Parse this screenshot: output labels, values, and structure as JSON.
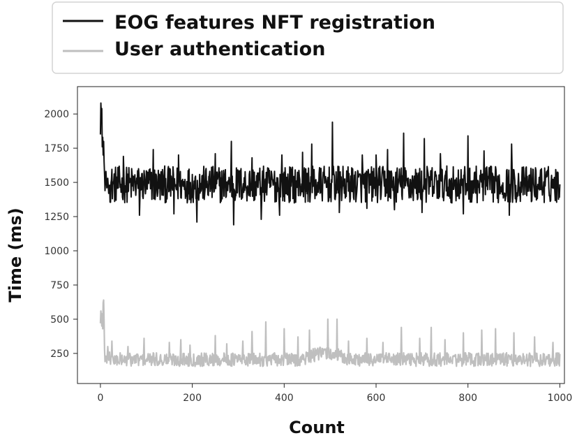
{
  "chart_data": {
    "type": "line",
    "xlabel": "Count",
    "ylabel": "Time (ms)",
    "xlim": [
      -50,
      1010
    ],
    "ylim": [
      30,
      2200
    ],
    "x_ticks": [
      0,
      200,
      400,
      600,
      800,
      1000
    ],
    "y_ticks": [
      250,
      500,
      750,
      1000,
      1250,
      1500,
      1750,
      2000
    ],
    "grid": false,
    "legend_position": "top",
    "series": [
      {
        "name": "EOG features NFT registration",
        "color": "#111111",
        "baseline": 1470,
        "noise_range": [
          1350,
          1620
        ],
        "x": [
          0,
          1,
          2,
          3,
          4,
          5,
          6,
          7,
          8,
          9,
          10,
          12,
          14,
          16,
          18,
          20
        ],
        "y": [
          1850,
          2080,
          1990,
          2040,
          1760,
          1830,
          1700,
          1800,
          1650,
          1560,
          1440,
          1580,
          1460,
          1530,
          1420,
          1480
        ],
        "spikes": [
          [
            50,
            1690
          ],
          [
            85,
            1700
          ],
          [
            115,
            1740
          ],
          [
            170,
            1700
          ],
          [
            210,
            1760
          ],
          [
            250,
            1710
          ],
          [
            285,
            1800
          ],
          [
            330,
            1680
          ],
          [
            395,
            1700
          ],
          [
            440,
            1720
          ],
          [
            460,
            1780
          ],
          [
            505,
            1940
          ],
          [
            570,
            1700
          ],
          [
            600,
            1700
          ],
          [
            625,
            1740
          ],
          [
            660,
            1860
          ],
          [
            705,
            1820
          ],
          [
            740,
            1710
          ],
          [
            800,
            1840
          ],
          [
            835,
            1730
          ],
          [
            895,
            1780
          ],
          [
            960,
            1600
          ],
          [
            85,
            1260
          ],
          [
            160,
            1270
          ],
          [
            210,
            1210
          ],
          [
            290,
            1190
          ],
          [
            350,
            1230
          ],
          [
            390,
            1260
          ],
          [
            520,
            1280
          ],
          [
            580,
            1310
          ],
          [
            640,
            1300
          ],
          [
            700,
            1280
          ],
          [
            790,
            1270
          ],
          [
            890,
            1260
          ]
        ]
      },
      {
        "name": "User authentication",
        "color": "#bfbfbf",
        "baseline": 205,
        "noise_range": [
          155,
          255
        ],
        "x": [
          0,
          1,
          2,
          3,
          4,
          5,
          6,
          7,
          8,
          9,
          10,
          12,
          14,
          16,
          18,
          20
        ],
        "y": [
          470,
          560,
          510,
          450,
          540,
          430,
          620,
          640,
          480,
          280,
          190,
          230,
          180,
          300,
          200,
          260
        ],
        "spikes": [
          [
            25,
            340
          ],
          [
            60,
            300
          ],
          [
            95,
            360
          ],
          [
            150,
            330
          ],
          [
            175,
            350
          ],
          [
            195,
            310
          ],
          [
            250,
            380
          ],
          [
            275,
            320
          ],
          [
            310,
            340
          ],
          [
            330,
            410
          ],
          [
            360,
            480
          ],
          [
            400,
            430
          ],
          [
            430,
            370
          ],
          [
            455,
            420
          ],
          [
            495,
            500
          ],
          [
            515,
            500
          ],
          [
            540,
            340
          ],
          [
            580,
            360
          ],
          [
            615,
            330
          ],
          [
            655,
            440
          ],
          [
            695,
            360
          ],
          [
            720,
            440
          ],
          [
            750,
            350
          ],
          [
            790,
            400
          ],
          [
            830,
            420
          ],
          [
            860,
            430
          ],
          [
            900,
            400
          ],
          [
            945,
            370
          ],
          [
            985,
            330
          ]
        ]
      }
    ]
  }
}
